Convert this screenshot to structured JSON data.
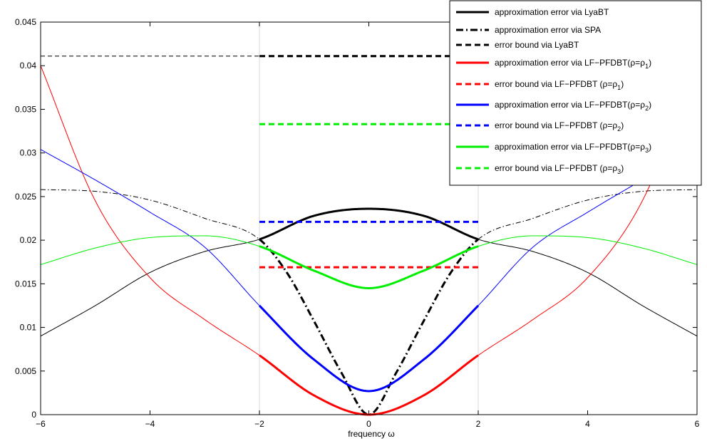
{
  "chart_data": {
    "type": "line",
    "title": "",
    "xlabel": "frequency ω",
    "ylabel": "",
    "xlim": [
      -6,
      6
    ],
    "ylim": [
      0,
      0.045
    ],
    "xticks": [
      -6,
      -4,
      -2,
      0,
      2,
      4,
      6
    ],
    "xtick_labels": [
      "−6",
      "−4",
      "−2",
      "0",
      "2",
      "4",
      "6"
    ],
    "yticks": [
      0,
      0.005,
      0.01,
      0.015,
      0.02,
      0.025,
      0.03,
      0.035,
      0.04,
      0.045
    ],
    "ytick_labels": [
      "0",
      "0.005",
      "0.01",
      "0.015",
      "0.02",
      "0.025",
      "0.03",
      "0.035",
      "0.04",
      "0.045"
    ],
    "grid": "vertical lines at x=-2 and x=2",
    "band": [
      -2,
      2
    ],
    "legend_position": "top-right",
    "series": [
      {
        "name": "approximation error via LyaBT",
        "color": "#000000",
        "style": "solid",
        "x": [
          -6,
          -5,
          -4,
          -3,
          -2,
          -1,
          0,
          1,
          2,
          3,
          4,
          5,
          6
        ],
        "y": [
          0.009,
          0.0125,
          0.0163,
          0.0187,
          0.0201,
          0.0228,
          0.0236,
          0.0228,
          0.0201,
          0.0187,
          0.0163,
          0.0125,
          0.009
        ]
      },
      {
        "name": "approximation error via SPA",
        "color": "#000000",
        "style": "dashdot",
        "x": [
          -6,
          -5,
          -4,
          -3,
          -2,
          -1.5,
          -1,
          -0.5,
          0,
          0.5,
          1,
          1.5,
          2,
          3,
          4,
          5,
          6
        ],
        "y": [
          0.0258,
          0.0256,
          0.0246,
          0.0225,
          0.0201,
          0.0163,
          0.0107,
          0.0048,
          0.0,
          0.0048,
          0.0107,
          0.0163,
          0.0201,
          0.0225,
          0.0246,
          0.0256,
          0.0258
        ]
      },
      {
        "name": "error bound via LyaBT",
        "color": "#000000",
        "style": "dashed",
        "x": [
          -6,
          6
        ],
        "y": [
          0.0411,
          0.0411
        ]
      },
      {
        "name": "approximation error via LF−PFDBT(ρ=ρ",
        "name_sub": "1",
        "name_suffix": ")",
        "color": "#ff0000",
        "style": "solid",
        "x": [
          -6,
          -5,
          -4,
          -3,
          -2,
          -1,
          0,
          1,
          2,
          3,
          4,
          5,
          6
        ],
        "y": [
          0.04,
          0.0245,
          0.0157,
          0.0109,
          0.0068,
          0.0022,
          0.0,
          0.0022,
          0.0068,
          0.0109,
          0.0157,
          0.0245,
          0.04
        ]
      },
      {
        "name": "error bound via LF−PFDBT (ρ=ρ",
        "name_sub": "1",
        "name_suffix": ")",
        "color": "#ff0000",
        "style": "dashed",
        "x": [
          -2,
          2
        ],
        "y": [
          0.0169,
          0.0169
        ]
      },
      {
        "name": "approximation error via LF−PFDBT(ρ=ρ",
        "name_sub": "2",
        "name_suffix": ")",
        "color": "#0000ff",
        "style": "solid",
        "x": [
          -6,
          -5,
          -4,
          -3,
          -2,
          -1,
          0,
          1,
          2,
          3,
          4,
          5,
          6
        ],
        "y": [
          0.0304,
          0.0269,
          0.0232,
          0.0192,
          0.0125,
          0.0063,
          0.0027,
          0.0063,
          0.0125,
          0.0192,
          0.0232,
          0.0269,
          0.0304
        ]
      },
      {
        "name": "error bound via LF−PFDBT (ρ=ρ",
        "name_sub": "2",
        "name_suffix": ")",
        "color": "#0000ff",
        "style": "dashed",
        "x": [
          -2,
          2
        ],
        "y": [
          0.0221,
          0.0221
        ]
      },
      {
        "name": "approximation error via LF−PFDBT(ρ=ρ",
        "name_sub": "3",
        "name_suffix": ")",
        "color": "#00ee00",
        "style": "solid",
        "x": [
          -6,
          -5,
          -4,
          -3,
          -2,
          -1,
          0,
          1,
          2,
          3,
          4,
          5,
          6
        ],
        "y": [
          0.0172,
          0.0191,
          0.0203,
          0.0205,
          0.0193,
          0.0165,
          0.0145,
          0.0165,
          0.0193,
          0.0205,
          0.0203,
          0.0191,
          0.0172
        ]
      },
      {
        "name": "error bound via LF−PFDBT (ρ=ρ",
        "name_sub": "3",
        "name_suffix": ")",
        "color": "#00ee00",
        "style": "dashed",
        "x": [
          -2,
          2
        ],
        "y": [
          0.0333,
          0.0333
        ]
      }
    ]
  }
}
